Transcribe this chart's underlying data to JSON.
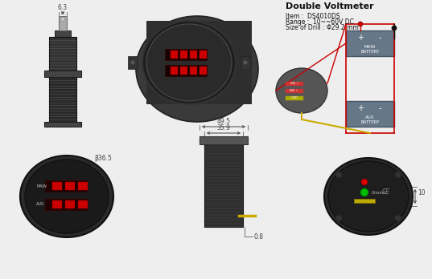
{
  "title": "Double Voltmeter",
  "item_text": "Item :  DS4010DS",
  "range_text": "Range :  10~~60V DC",
  "drill_text": "Size of Drill : Φ29.2 mm",
  "bg_color": "#eeeeee",
  "dim_6_3": "6.3",
  "dim_49_5": "49.5",
  "dim_35_9": "35.9",
  "dim_36_5": "β36.5",
  "dim_0_8": "0.8",
  "dim_10": "10",
  "red_color": "#cc0000",
  "black_color": "#111111",
  "green_color": "#00aa00",
  "yellow_color": "#ccaa00",
  "dark_gray": "#444444",
  "light_gray": "#bbbbbb",
  "battery_color": "#667788"
}
